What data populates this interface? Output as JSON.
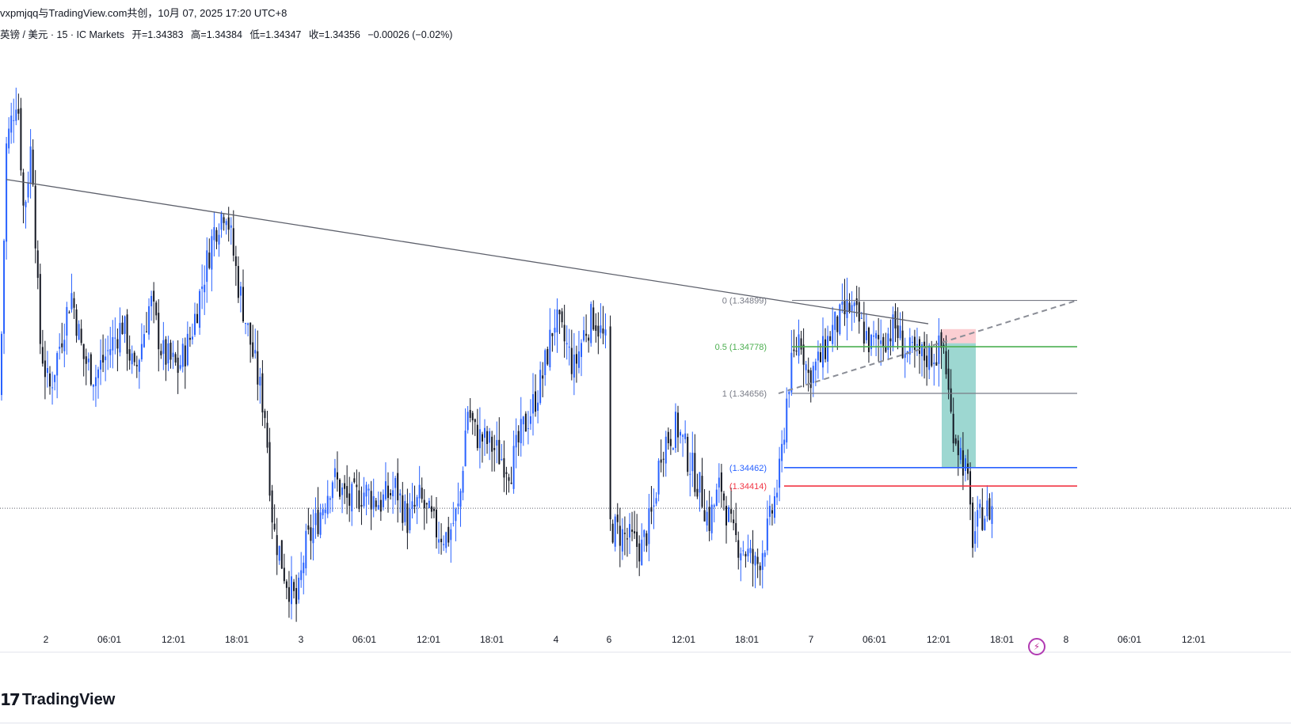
{
  "header": {
    "share_line": "vxpmjqq与TradingView.com共创，10月 07, 2025 17:20 UTC+8",
    "symbol": "英镑 / 美元 · 15 · IC Markets",
    "open": "开=1.34383",
    "high": "高=1.34384",
    "low": "低=1.34347",
    "close": "收=1.34356",
    "change": "−0.00026 (−0.02%)"
  },
  "brand": {
    "logo_glyph": "17",
    "name": "TradingView"
  },
  "icons": {
    "bolt": "bolt-icon"
  },
  "colors": {
    "up": "#2962ff",
    "down": "#131722",
    "fib_0": "#787b86",
    "fib_05": "#4caf50",
    "fib_1": "#787b86",
    "target": "#2962ff",
    "stop": "#f23645",
    "profit_zone": "#26a69a",
    "loss_zone": "#f7a6ad"
  },
  "chart_data": {
    "type": "candlestick",
    "instrument": "GBP/USD",
    "timeframe": "15",
    "y_range": [
      1.3405,
      1.3556
    ],
    "x_ticks": [
      "2",
      "06:01",
      "12:01",
      "18:01",
      "3",
      "06:01",
      "12:01",
      "18:01",
      "4",
      "6",
      "12:01",
      "18:01",
      "7",
      "06:01",
      "12:01",
      "18:01",
      "8",
      "06:01",
      "12:01"
    ],
    "price_path": [
      [
        0,
        1.3465
      ],
      [
        8,
        1.353
      ],
      [
        22,
        1.3545
      ],
      [
        30,
        1.3512
      ],
      [
        40,
        1.3532
      ],
      [
        50,
        1.348
      ],
      [
        62,
        1.3466
      ],
      [
        75,
        1.3478
      ],
      [
        90,
        1.3492
      ],
      [
        105,
        1.3475
      ],
      [
        120,
        1.347
      ],
      [
        140,
        1.3478
      ],
      [
        155,
        1.3484
      ],
      [
        170,
        1.347
      ],
      [
        190,
        1.349
      ],
      [
        205,
        1.3476
      ],
      [
        225,
        1.3472
      ],
      [
        240,
        1.348
      ],
      [
        255,
        1.3494
      ],
      [
        270,
        1.3508
      ],
      [
        285,
        1.3515
      ],
      [
        300,
        1.3495
      ],
      [
        315,
        1.348
      ],
      [
        335,
        1.346
      ],
      [
        345,
        1.343
      ],
      [
        352,
        1.3425
      ],
      [
        360,
        1.3418
      ],
      [
        375,
        1.341
      ],
      [
        385,
        1.3425
      ],
      [
        400,
        1.3432
      ],
      [
        420,
        1.3444
      ],
      [
        440,
        1.3437
      ],
      [
        460,
        1.344
      ],
      [
        480,
        1.3437
      ],
      [
        500,
        1.3441
      ],
      [
        515,
        1.3432
      ],
      [
        530,
        1.3438
      ],
      [
        550,
        1.343
      ],
      [
        565,
        1.3428
      ],
      [
        580,
        1.3436
      ],
      [
        590,
        1.3462
      ],
      [
        600,
        1.3455
      ],
      [
        620,
        1.3452
      ],
      [
        645,
        1.3446
      ],
      [
        660,
        1.3456
      ],
      [
        672,
        1.3462
      ],
      [
        685,
        1.347
      ],
      [
        700,
        1.3485
      ],
      [
        715,
        1.3478
      ],
      [
        725,
        1.3472
      ],
      [
        738,
        1.3482
      ],
      [
        750,
        1.3486
      ],
      [
        765,
        1.3478
      ],
      [
        770,
        1.3431
      ],
      [
        790,
        1.3428
      ],
      [
        810,
        1.3425
      ],
      [
        825,
        1.3435
      ],
      [
        835,
        1.3452
      ],
      [
        855,
        1.3457
      ],
      [
        870,
        1.3448
      ],
      [
        885,
        1.344
      ],
      [
        895,
        1.3432
      ],
      [
        910,
        1.3442
      ],
      [
        925,
        1.3428
      ],
      [
        940,
        1.3425
      ],
      [
        955,
        1.342
      ],
      [
        970,
        1.343
      ],
      [
        985,
        1.3445
      ],
      [
        995,
        1.3468
      ],
      [
        1010,
        1.3482
      ],
      [
        1020,
        1.347
      ],
      [
        1035,
        1.3474
      ],
      [
        1050,
        1.3482
      ],
      [
        1062,
        1.3485
      ],
      [
        1072,
        1.3488
      ],
      [
        1085,
        1.3484
      ],
      [
        1100,
        1.3478
      ],
      [
        1115,
        1.348
      ],
      [
        1130,
        1.3483
      ],
      [
        1145,
        1.3476
      ],
      [
        1160,
        1.3475
      ],
      [
        1180,
        1.3476
      ],
      [
        1192,
        1.3478
      ],
      [
        1200,
        1.346
      ],
      [
        1210,
        1.3452
      ],
      [
        1220,
        1.3445
      ],
      [
        1228,
        1.3428
      ],
      [
        1240,
        1.3434
      ],
      [
        1255,
        1.3436
      ]
    ],
    "trendline": {
      "from": [
        8,
        1.35215
      ],
      "to": [
        1172,
        1.34838
      ]
    },
    "fibonacci": [
      {
        "label": "0 (1.34899)",
        "value": 1.34899
      },
      {
        "label": "0.5 (1.34778)",
        "value": 1.34778
      },
      {
        "label": "1 (1.34656)",
        "value": 1.34656
      }
    ],
    "fib_left_x": 1000,
    "fib_right_x": 1360,
    "dashed_extension": {
      "from": [
        983,
        1.34656
      ],
      "to": [
        1360,
        1.34899
      ]
    },
    "target": {
      "label": "1.34462",
      "value": 1.34462,
      "from_x": 990,
      "to_x": 1360
    },
    "stop": {
      "label": "1.34414",
      "value": 1.34414,
      "from_x": 990,
      "to_x": 1360
    },
    "position": {
      "from_x": 1189,
      "to_x": 1232,
      "entry": 1.34787,
      "stop_top": 1.34824,
      "target": 1.34462
    },
    "last_price_line": 1.34356
  }
}
